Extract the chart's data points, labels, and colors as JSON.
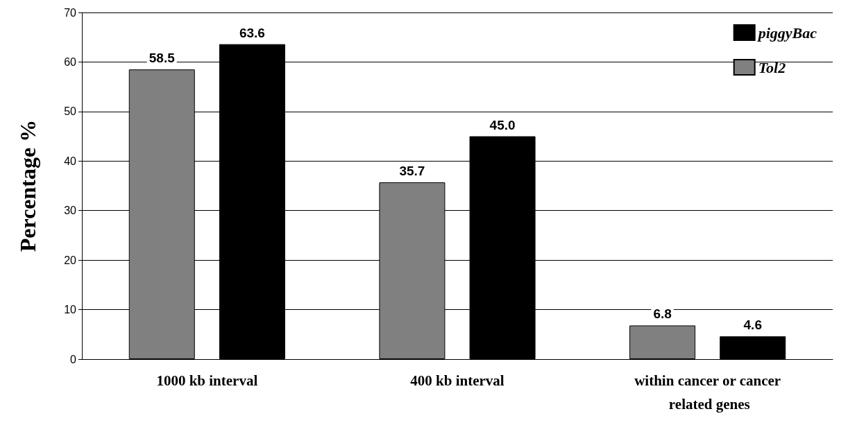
{
  "chart_data": {
    "type": "bar",
    "ylabel": "Percentage %",
    "categories": [
      "1000 kb interval",
      "400 kb interval",
      "within cancer or cancer related genes"
    ],
    "series": [
      {
        "name": "Tol2",
        "color": "#808080",
        "values": [
          58.5,
          35.7,
          6.8
        ],
        "value_labels": [
          "58.5",
          "35.7",
          "6.8"
        ]
      },
      {
        "name": "piggyBac",
        "color": "#000000",
        "values": [
          63.6,
          45.0,
          4.6
        ],
        "value_labels": [
          "63.6",
          "45.0",
          "4.6"
        ]
      }
    ],
    "ylim": [
      0,
      70
    ],
    "yticks": [
      0,
      10,
      20,
      30,
      40,
      50,
      60,
      70
    ],
    "grid": "y",
    "legend": "top right"
  }
}
